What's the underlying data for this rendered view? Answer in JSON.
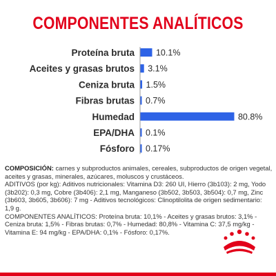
{
  "title": "COMPONENTES ANALÍTICOS",
  "chart_data": {
    "type": "bar",
    "orientation": "horizontal",
    "title": "COMPONENTES ANALÍTICOS",
    "categories": [
      "Proteína bruta",
      "Aceites y grasas brutos",
      "Ceniza bruta",
      "Fibras brutas",
      "Humedad",
      "EPA/DHA",
      "Fósforo"
    ],
    "values": [
      10.1,
      3.1,
      1.5,
      0.7,
      80.8,
      0.1,
      0.17
    ],
    "value_labels": [
      "10.1%",
      "3.1%",
      "1.5%",
      "0.7%",
      "80.8%",
      "0.1%",
      "0.17%"
    ],
    "xlim": [
      0,
      82
    ],
    "grid": false,
    "bar_color": "#2E63E6"
  },
  "composition": {
    "heading": "COMPOSICIÓN:",
    "text": "carnes y subproductos animales, cereales, subproductos de origen vegetal, aceites y grasas, minerales, azúcares, moluscos y crustáceos.",
    "additives": "ADITIVOS (por kg): Aditivos nutricionales: Vitamina D3: 260 UI, Hierro (3b103): 2 mg, Yodo (3b202): 0,3 mg, Cobre (3b406): 2,1 mg, Manganeso (3b502, 3b503, 3b504): 0,7 mg, Zinc (3b603, 3b605, 3b606): 7 mg - Aditivos tecnológicos: Clinoptilolita de origen sedimentario: 1,9 g.",
    "analytical": "COMPONENTES ANALÍTICOS: Proteína bruta: 10,1% - Aceites y grasas brutos: 3,1% - Ceniza bruta: 1,5% - Fibras brutas: 0,7% - Humedad: 80,8% - Vitamina C: 37,5 mg/kg - Vitamina E: 94 mg/kg - EPA/DHA: 0,1% - Fósforo: 0,17%."
  },
  "colors": {
    "title": "#E2001A",
    "bar": "#2E63E6",
    "accent_red": "#E2001A"
  },
  "logo": "royal-canin-crown-logo"
}
